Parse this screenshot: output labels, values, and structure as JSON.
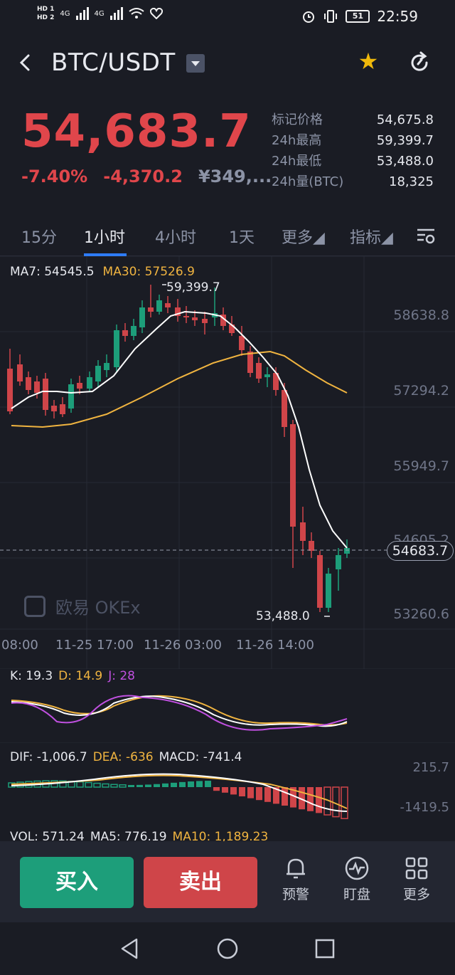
{
  "status_bar": {
    "hd1": "HD 1",
    "hd2": "HD 2",
    "net1": "4G",
    "net2": "4G",
    "battery": "51",
    "time": "22:59"
  },
  "header": {
    "pair": "BTC/USDT",
    "icons": [
      "back-icon",
      "dropdown-icon",
      "star-icon",
      "refresh-icon"
    ]
  },
  "ticker": {
    "price": "54,683.7",
    "change_pct": "-7.40%",
    "change_abs": "-4,370.2",
    "cny_price": "¥349,...",
    "stats": [
      {
        "label": "标记价格",
        "value": "54,675.8"
      },
      {
        "label": "24h最高",
        "value": "59,399.7"
      },
      {
        "label": "24h最低",
        "value": "53,488.0"
      },
      {
        "label": "24h量(BTC)",
        "value": "18,325"
      }
    ]
  },
  "tabs": [
    {
      "label": "15分"
    },
    {
      "label": "1小时"
    },
    {
      "label": "4小时"
    },
    {
      "label": "1天"
    },
    {
      "label": "更多◢"
    },
    {
      "label": "指标◢"
    }
  ],
  "main_chart": {
    "ma7_label": "MA7: 54545.5",
    "ma30_label": "MA30: 57526.9",
    "y_labels": [
      "58638.8",
      "57294.2",
      "55949.7",
      "54605.2",
      "53260.6"
    ],
    "high_label": "59,399.7",
    "low_label": "53,488.0",
    "current_tag": "54683.7",
    "watermark": "欧易 OKEx",
    "x_labels": [
      "08:00",
      "11-25 17:00",
      "11-26 03:00",
      "11-26 14:00"
    ]
  },
  "kdj": {
    "k": "K: 19.3",
    "d": "D: 14.9",
    "j": "J: 28"
  },
  "macd": {
    "dif": "DIF: -1,006.7",
    "dea": "DEA: -636",
    "macd": "MACD: -741.4",
    "y_top": "215.7",
    "y_bottom": "-1419.5"
  },
  "volume": {
    "vol": "VOL: 571.24",
    "ma5": "MA5: 776.19",
    "ma10": "MA10: 1,189.23"
  },
  "actions": {
    "buy": "买入",
    "sell": "卖出",
    "alert": "预警",
    "monitor": "盯盘",
    "more": "更多"
  },
  "colors": {
    "up": "#1d9e7a",
    "down": "#cf4549",
    "ma7": "#ffffff",
    "ma30": "#f0b440",
    "j": "#c050e0",
    "accent": "#2e7cf6"
  }
}
